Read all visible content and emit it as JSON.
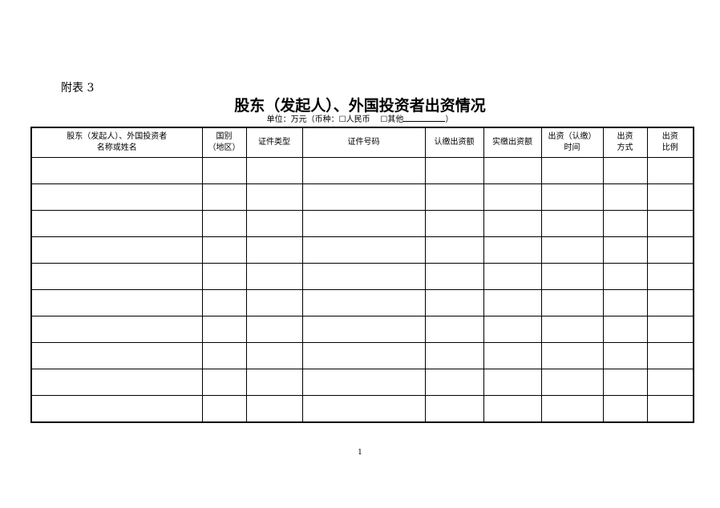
{
  "appendix_label": "附表 3",
  "title": "股东（发起人）、外国投资者出资情况",
  "unit_line": {
    "prefix": "单位：万元（币种：",
    "option_rmb": "人民币",
    "option_other": "其他",
    "suffix": "）"
  },
  "table": {
    "headers": [
      [
        "股东（发起人）、外国投资者",
        "名称或姓名"
      ],
      [
        "国别",
        "（地区）"
      ],
      [
        "证件类型"
      ],
      [
        "证件号码"
      ],
      [
        "认缴出资额"
      ],
      [
        "实缴出资额"
      ],
      [
        "出资（认缴）",
        "时间"
      ],
      [
        "出资",
        "方式"
      ],
      [
        "出资",
        "比例"
      ]
    ],
    "row_count": 10
  },
  "page_number": "1"
}
